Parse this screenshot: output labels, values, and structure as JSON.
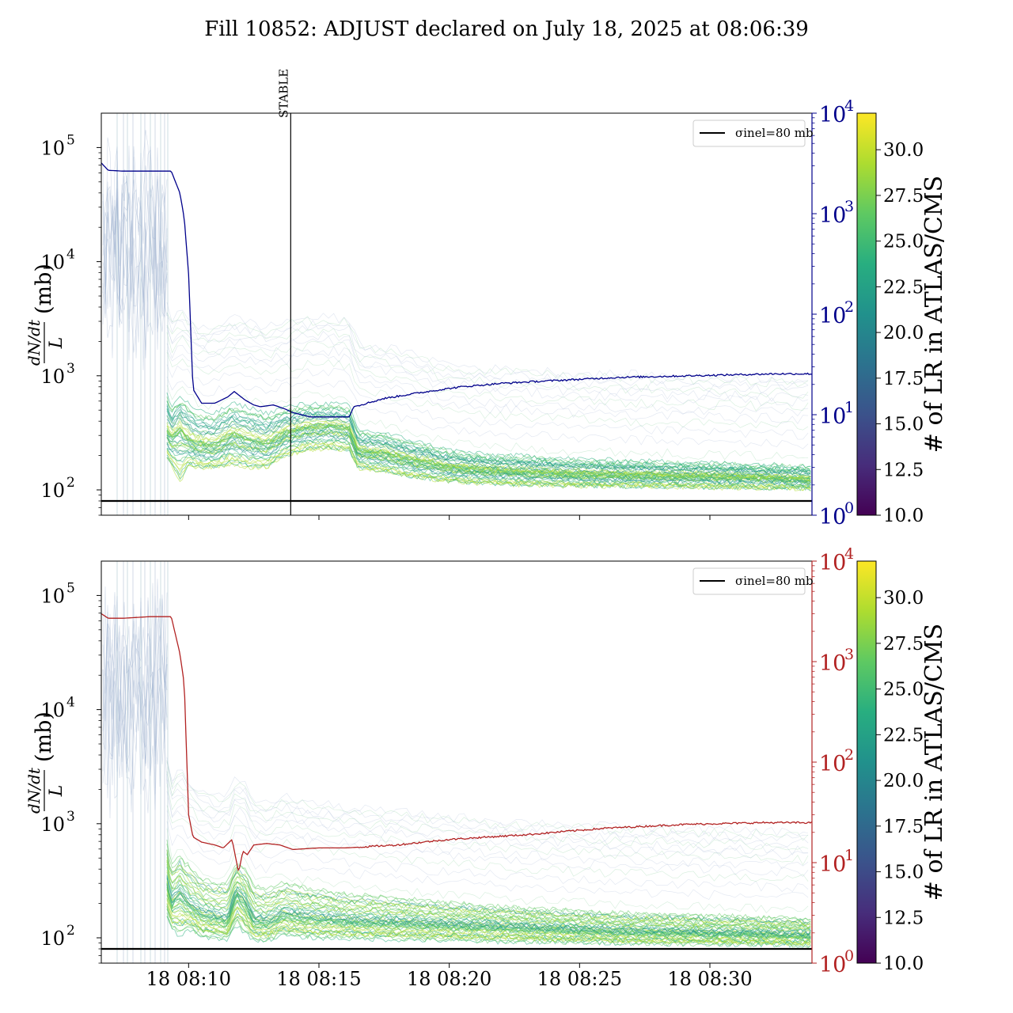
{
  "figure_title": "Fill 10852: ADJUST declared on July 18, 2025 at 08:06:39",
  "colors": {
    "top_secondary": "#00008b",
    "bottom_secondary": "#b22222",
    "reference_line": "#000000",
    "viridis": [
      "#440154",
      "#472d7b",
      "#3b528b",
      "#2c728e",
      "#21918c",
      "#28ae80",
      "#5ec962",
      "#addc30",
      "#fde725"
    ]
  },
  "chart_data": [
    {
      "type": "line",
      "panel": "top",
      "ylabel": "dN/dt / L (mb)",
      "y_scale": "log",
      "ylim": [
        60,
        200000
      ],
      "y_ticks": [
        100,
        1000,
        10000,
        100000
      ],
      "y_tick_labels": [
        "10^2",
        "10^3",
        "10^4",
        "10^5"
      ],
      "secondary_y_scale": "log",
      "secondary_ylim": [
        1,
        10000
      ],
      "secondary_y_ticks": [
        1,
        10,
        100,
        1000,
        10000
      ],
      "secondary_y_tick_labels": [
        "10^0",
        "10^1",
        "10^2",
        "10^3",
        "10^4"
      ],
      "x_range": [
        "08:06:39",
        "08:33:55"
      ],
      "x_tick_labels": [],
      "legend": {
        "label": "σinel=80 mb",
        "position": "upper right"
      },
      "reference_line": {
        "y": 80
      },
      "vertical_marker": {
        "time": "08:13:55",
        "label": "STABLE"
      },
      "colorbar": {
        "label": "# of LR in ATLAS/CMS",
        "range": [
          10.0,
          32.0
        ],
        "ticks": [
          "10.0",
          "12.5",
          "15.0",
          "17.5",
          "20.0",
          "22.5",
          "25.0",
          "27.5",
          "30.0"
        ]
      },
      "secondary_series": {
        "color": "#00008b",
        "times": [
          "08:06:39",
          "08:06:55",
          "08:07:30",
          "08:08:30",
          "08:09:20",
          "08:09:40",
          "08:09:50",
          "08:10:00",
          "08:10:10",
          "08:10:30",
          "08:11:00",
          "08:11:30",
          "08:11:45",
          "08:12:10",
          "08:12:30",
          "08:12:45",
          "08:13:15",
          "08:13:40",
          "08:14:00",
          "08:14:40",
          "08:15:30",
          "08:16:10",
          "08:16:20",
          "08:17:30",
          "08:18:30",
          "08:19:30",
          "08:20:30",
          "08:22:00",
          "08:23:30",
          "08:25:00",
          "08:26:30",
          "08:28:00",
          "08:29:30",
          "08:31:00",
          "08:32:30",
          "08:33:55"
        ],
        "values": [
          3200,
          2700,
          2650,
          2650,
          2650,
          1600,
          900,
          250,
          18,
          13,
          13,
          15,
          17,
          14,
          12.5,
          12,
          12.5,
          11.5,
          10.5,
          9.5,
          9.5,
          9.5,
          12,
          14.5,
          16,
          17.5,
          19,
          20.5,
          21.5,
          22.5,
          23.5,
          24,
          24.5,
          25,
          25.5,
          25.5
        ]
      },
      "band": {
        "times": [
          "08:09:10",
          "08:09:20",
          "08:09:40",
          "08:10:00",
          "08:10:20",
          "08:11:00",
          "08:11:40",
          "08:12:20",
          "08:13:00",
          "08:13:40",
          "08:14:30",
          "08:15:30",
          "08:16:10",
          "08:16:30",
          "08:17:30",
          "08:18:30",
          "08:20:00",
          "08:21:30",
          "08:23:00",
          "08:24:30",
          "08:26:00",
          "08:28:00",
          "08:30:00",
          "08:32:00",
          "08:33:55"
        ],
        "upper": [
          700,
          520,
          650,
          560,
          480,
          460,
          560,
          520,
          460,
          520,
          560,
          560,
          540,
          330,
          310,
          270,
          220,
          200,
          195,
          185,
          180,
          175,
          170,
          165,
          160
        ],
        "center": [
          320,
          280,
          330,
          270,
          250,
          240,
          300,
          270,
          250,
          310,
          350,
          360,
          340,
          220,
          210,
          185,
          160,
          150,
          145,
          140,
          138,
          135,
          133,
          130,
          125
        ],
        "lower": [
          180,
          160,
          110,
          160,
          150,
          150,
          160,
          150,
          150,
          190,
          210,
          220,
          210,
          150,
          140,
          125,
          115,
          110,
          108,
          106,
          105,
          104,
          103,
          102,
          100
        ]
      }
    },
    {
      "type": "line",
      "panel": "bottom",
      "ylabel": "dN/dt / L (mb)",
      "y_scale": "log",
      "ylim": [
        60,
        200000
      ],
      "y_ticks": [
        100,
        1000,
        10000,
        100000
      ],
      "y_tick_labels": [
        "10^2",
        "10^3",
        "10^4",
        "10^5"
      ],
      "secondary_y_scale": "log",
      "secondary_ylim": [
        1,
        10000
      ],
      "secondary_y_ticks": [
        1,
        10,
        100,
        1000,
        10000
      ],
      "secondary_y_tick_labels": [
        "10^0",
        "10^1",
        "10^2",
        "10^3",
        "10^4"
      ],
      "x_range": [
        "08:06:39",
        "08:33:55"
      ],
      "x_tick_times": [
        "08:10:00",
        "08:15:00",
        "08:20:00",
        "08:25:00",
        "08:30:00"
      ],
      "x_tick_labels": [
        "18 08:10",
        "18 08:15",
        "18 08:20",
        "18 08:25",
        "18 08:30"
      ],
      "legend": {
        "label": "σinel=80 mb",
        "position": "upper right"
      },
      "reference_line": {
        "y": 80
      },
      "colorbar": {
        "label": "# of LR in ATLAS/CMS",
        "range": [
          10.0,
          32.0
        ],
        "ticks": [
          "10.0",
          "12.5",
          "15.0",
          "17.5",
          "20.0",
          "22.5",
          "25.0",
          "27.5",
          "30.0"
        ]
      },
      "secondary_series": {
        "color": "#b22222",
        "times": [
          "08:06:39",
          "08:06:55",
          "08:07:30",
          "08:08:30",
          "08:09:20",
          "08:09:40",
          "08:09:50",
          "08:10:00",
          "08:10:10",
          "08:10:30",
          "08:11:00",
          "08:11:20",
          "08:11:40",
          "08:11:55",
          "08:12:05",
          "08:12:15",
          "08:12:30",
          "08:13:00",
          "08:13:30",
          "08:14:00",
          "08:15:00",
          "08:16:00",
          "08:17:00",
          "08:18:00",
          "08:19:00",
          "08:20:00",
          "08:21:30",
          "08:23:00",
          "08:24:30",
          "08:26:00",
          "08:27:30",
          "08:29:00",
          "08:30:30",
          "08:32:00",
          "08:33:55"
        ],
        "values": [
          3000,
          2700,
          2700,
          2800,
          2800,
          1200,
          600,
          30,
          18,
          16,
          15,
          14,
          17,
          8,
          13,
          12,
          15,
          15.5,
          15,
          13.5,
          14,
          14,
          14.5,
          15,
          16,
          17,
          18,
          19,
          20.5,
          22,
          23,
          24,
          24.5,
          25,
          25
        ]
      },
      "band": {
        "times": [
          "08:09:10",
          "08:09:20",
          "08:09:40",
          "08:10:00",
          "08:10:30",
          "08:11:00",
          "08:11:30",
          "08:11:50",
          "08:12:10",
          "08:12:30",
          "08:13:00",
          "08:13:40",
          "08:14:30",
          "08:16:00",
          "08:18:00",
          "08:20:00",
          "08:22:00",
          "08:24:00",
          "08:26:00",
          "08:28:00",
          "08:30:00",
          "08:32:00",
          "08:33:55"
        ],
        "upper": [
          700,
          420,
          520,
          420,
          330,
          300,
          300,
          450,
          400,
          280,
          260,
          300,
          270,
          240,
          220,
          200,
          185,
          175,
          165,
          160,
          155,
          150,
          145
        ],
        "center": [
          300,
          200,
          240,
          190,
          160,
          150,
          140,
          250,
          200,
          140,
          135,
          160,
          150,
          140,
          135,
          130,
          125,
          120,
          115,
          112,
          110,
          108,
          105
        ],
        "lower": [
          150,
          120,
          100,
          120,
          100,
          100,
          95,
          130,
          110,
          95,
          95,
          105,
          100,
          98,
          96,
          94,
          92,
          91,
          90,
          89,
          88,
          87,
          86
        ]
      }
    }
  ]
}
